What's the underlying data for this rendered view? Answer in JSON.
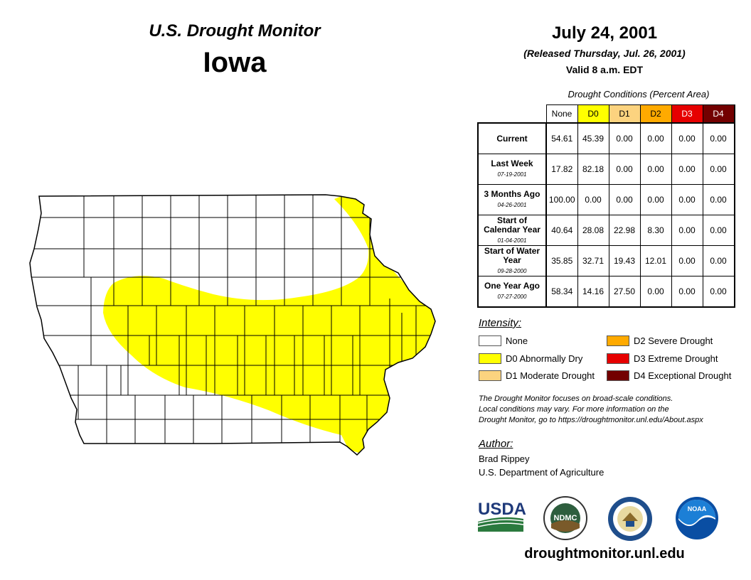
{
  "header": {
    "monitor_title": "U.S. Drought Monitor",
    "state": "Iowa",
    "date": "July 24, 2001",
    "released": "(Released Thursday, Jul. 26, 2001)",
    "valid": "Valid 8 a.m. EDT"
  },
  "conditions": {
    "caption": "Drought Conditions (Percent Area)",
    "columns": [
      {
        "label": "None",
        "color": "#ffffff",
        "text_color": "#000000"
      },
      {
        "label": "D0",
        "color": "#ffff00",
        "text_color": "#000000"
      },
      {
        "label": "D1",
        "color": "#fcd37f",
        "text_color": "#000000"
      },
      {
        "label": "D2",
        "color": "#ffaa00",
        "text_color": "#000000"
      },
      {
        "label": "D3",
        "color": "#e60000",
        "text_color": "#ffffff"
      },
      {
        "label": "D4",
        "color": "#730000",
        "text_color": "#ffffff"
      }
    ],
    "rows": [
      {
        "label": "Current",
        "date": "",
        "values": [
          "54.61",
          "45.39",
          "0.00",
          "0.00",
          "0.00",
          "0.00"
        ]
      },
      {
        "label": "Last Week",
        "date": "07-19-2001",
        "values": [
          "17.82",
          "82.18",
          "0.00",
          "0.00",
          "0.00",
          "0.00"
        ]
      },
      {
        "label": "3 Months Ago",
        "date": "04-26-2001",
        "values": [
          "100.00",
          "0.00",
          "0.00",
          "0.00",
          "0.00",
          "0.00"
        ]
      },
      {
        "label": "Start of Calendar Year",
        "date": "01-04-2001",
        "values": [
          "40.64",
          "28.08",
          "22.98",
          "8.30",
          "0.00",
          "0.00"
        ]
      },
      {
        "label": "Start of Water Year",
        "date": "09-28-2000",
        "values": [
          "35.85",
          "32.71",
          "19.43",
          "12.01",
          "0.00",
          "0.00"
        ]
      },
      {
        "label": "One Year Ago",
        "date": "07-27-2000",
        "values": [
          "58.34",
          "14.16",
          "27.50",
          "0.00",
          "0.00",
          "0.00"
        ]
      }
    ]
  },
  "legend": {
    "title": "Intensity:",
    "items": [
      {
        "label": "None",
        "color": "#ffffff"
      },
      {
        "label": "D0 Abnormally Dry",
        "color": "#ffff00"
      },
      {
        "label": "D1 Moderate Drought",
        "color": "#fcd37f"
      },
      {
        "label": "D2 Severe Drought",
        "color": "#ffaa00"
      },
      {
        "label": "D3 Extreme Drought",
        "color": "#e60000"
      },
      {
        "label": "D4 Exceptional Drought",
        "color": "#730000"
      }
    ]
  },
  "disclaimer": {
    "line1": "The Drought Monitor focuses on broad-scale conditions.",
    "line2": "Local conditions may vary. For more information on the",
    "line3": "Drought Monitor, go to https://droughtmonitor.unl.edu/About.aspx"
  },
  "author": {
    "title": "Author:",
    "name": "Brad Rippey",
    "org": "U.S. Department of Agriculture"
  },
  "logos": {
    "usda": "USDA",
    "ndmc": "NDMC",
    "noaa": "NOAA"
  },
  "website": "droughtmonitor.unl.edu"
}
